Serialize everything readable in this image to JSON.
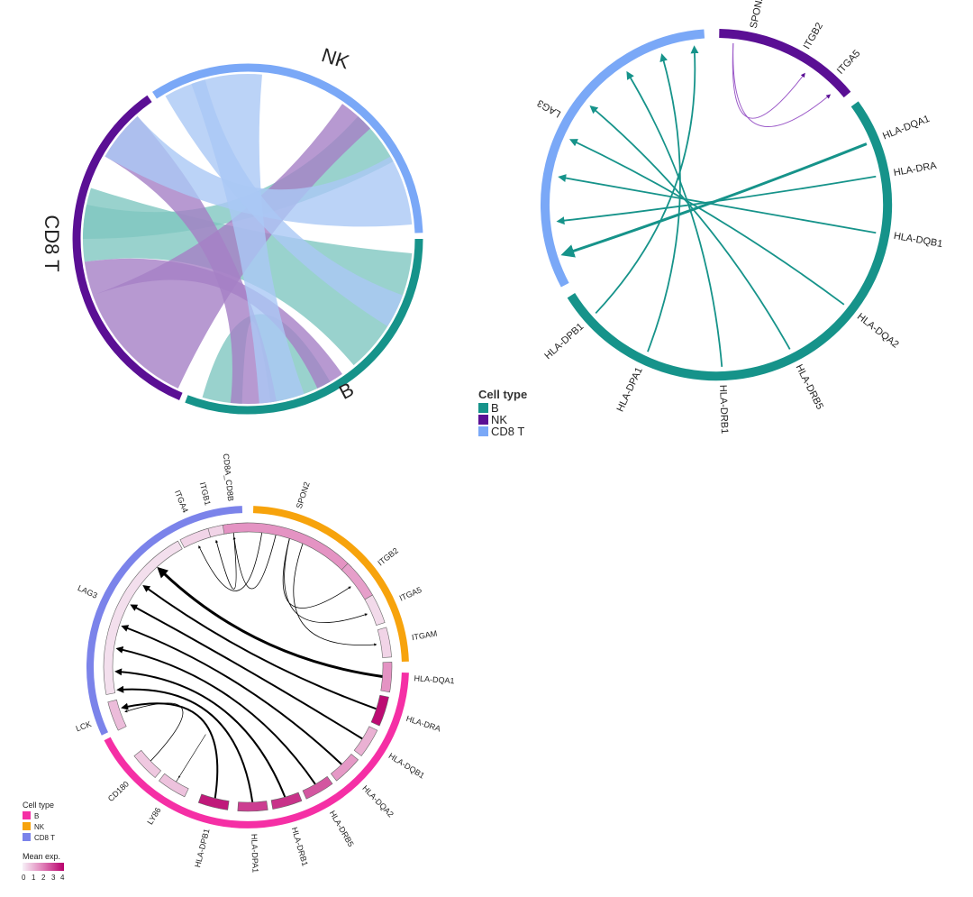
{
  "panel_a": {
    "sectors": [
      {
        "key": "nk",
        "label": "NK",
        "color": "#7aa8f7"
      },
      {
        "key": "b",
        "label": "B",
        "color": "#16938a"
      },
      {
        "key": "cd8t",
        "label": "CD8 T",
        "color": "#5a0f94"
      }
    ],
    "chord_colors": {
      "b": "#7fc7c1",
      "nk": "#aac8f5",
      "cd8t": "#a57fc5"
    }
  },
  "panel_b": {
    "genes": {
      "cd8t": [
        "LAG3"
      ],
      "nk": [
        "SPON2",
        "ITGB2",
        "ITGA5"
      ],
      "b": [
        "HLA-DQA1",
        "HLA-DRA",
        "HLA-DQB1",
        "HLA-DQA2",
        "HLA-DRB5",
        "HLA-DRB1",
        "HLA-DPA1",
        "HLA-DPB1"
      ]
    },
    "colors": {
      "b": "#16938a",
      "nk": "#5a0f94",
      "cd8t": "#7aa8f7",
      "nk_link": "#9b59c8"
    },
    "legend": {
      "title": "Cell type",
      "items": [
        {
          "label": "B",
          "color": "#16938a"
        },
        {
          "label": "NK",
          "color": "#5a0f94"
        },
        {
          "label": "CD8 T",
          "color": "#7aa8f7"
        }
      ]
    }
  },
  "panel_c": {
    "genes": [
      {
        "label": "CD8A_CD8B",
        "group": "cd8t",
        "exp": 0.6
      },
      {
        "label": "ITGB1",
        "group": "cd8t",
        "exp": 0.5
      },
      {
        "label": "ITGA4",
        "group": "cd8t",
        "exp": 0.5
      },
      {
        "label": "LAG3",
        "group": "cd8t",
        "exp": 0.3
      },
      {
        "label": "LCK",
        "group": "cd8t",
        "exp": 0.9
      },
      {
        "label": "SPON2",
        "group": "nk",
        "exp": 1.6
      },
      {
        "label": "ITGB2",
        "group": "nk",
        "exp": 1.4
      },
      {
        "label": "ITGA5",
        "group": "nk",
        "exp": 0.4
      },
      {
        "label": "ITGAM",
        "group": "nk",
        "exp": 0.5
      },
      {
        "label": "HLA-DQA1",
        "group": "b",
        "exp": 1.6
      },
      {
        "label": "HLA-DRA",
        "group": "b",
        "exp": 3.8
      },
      {
        "label": "HLA-DQB1",
        "group": "b",
        "exp": 1.1
      },
      {
        "label": "HLA-DQA2",
        "group": "b",
        "exp": 1.5
      },
      {
        "label": "HLA-DRB5",
        "group": "b",
        "exp": 2.6
      },
      {
        "label": "HLA-DRB1",
        "group": "b",
        "exp": 3.2
      },
      {
        "label": "HLA-DPA1",
        "group": "b",
        "exp": 3.0
      },
      {
        "label": "HLA-DPB1",
        "group": "b",
        "exp": 3.6
      },
      {
        "label": "LY86",
        "group": "b",
        "exp": 0.8
      },
      {
        "label": "CD180",
        "group": "b",
        "exp": 0.7
      }
    ],
    "colors": {
      "b": "#f52fa5",
      "nk": "#f7a30c",
      "cd8t": "#7b83ea"
    },
    "legend": {
      "title": "Cell type",
      "items": [
        {
          "label": "B",
          "color": "#f52fa5"
        },
        {
          "label": "NK",
          "color": "#f7a30c"
        },
        {
          "label": "CD8 T",
          "color": "#7b83ea"
        }
      ],
      "scale_title": "Mean exp.",
      "scale_ticks": [
        "0",
        "1",
        "2",
        "3",
        "4"
      ]
    }
  }
}
